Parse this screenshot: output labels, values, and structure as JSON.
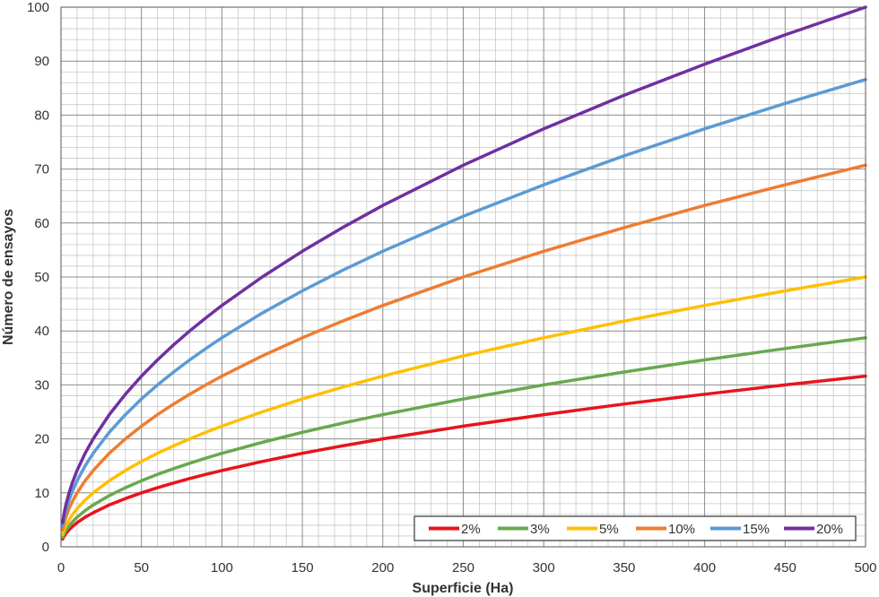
{
  "chart_data": {
    "type": "line",
    "title": "",
    "xlabel": "Superficie (Ha)",
    "ylabel": "Número de ensayos",
    "xlim": [
      0,
      500
    ],
    "ylim": [
      0,
      100
    ],
    "x_ticks": [
      0,
      50,
      100,
      150,
      200,
      250,
      300,
      350,
      400,
      450,
      500
    ],
    "y_ticks": [
      0,
      10,
      20,
      30,
      40,
      50,
      60,
      70,
      80,
      90,
      100
    ],
    "x_tick_labels": [
      "0",
      "50",
      "100",
      "150",
      "200",
      "250",
      "300",
      "350",
      "400",
      "450",
      "500"
    ],
    "y_tick_labels": [
      "0",
      "10",
      "20",
      "30",
      "40",
      "50",
      "60",
      "70",
      "80",
      "90",
      "100"
    ],
    "grid": true,
    "legend_position": "bottom-right",
    "x": [
      1,
      2,
      3,
      5,
      7,
      10,
      15,
      20,
      30,
      40,
      50,
      60,
      70,
      80,
      90,
      100,
      125,
      150,
      175,
      200,
      250,
      300,
      350,
      400,
      450,
      500
    ],
    "series": [
      {
        "name": "2%",
        "color": "#e8141b",
        "values": [
          1.41,
          2.0,
          2.45,
          3.16,
          3.74,
          4.47,
          5.48,
          6.32,
          7.75,
          8.94,
          10.0,
          10.95,
          11.83,
          12.65,
          13.42,
          14.14,
          15.81,
          17.32,
          18.71,
          20.0,
          22.36,
          24.49,
          26.46,
          28.28,
          30.0,
          31.62
        ]
      },
      {
        "name": "3%",
        "color": "#6aa84f",
        "values": [
          1.73,
          2.45,
          3.0,
          3.87,
          4.58,
          5.48,
          6.71,
          7.75,
          9.49,
          10.95,
          12.25,
          13.42,
          14.49,
          15.49,
          16.43,
          17.32,
          19.36,
          21.21,
          22.91,
          24.49,
          27.39,
          30.0,
          32.4,
          34.64,
          36.74,
          38.73
        ]
      },
      {
        "name": "5%",
        "color": "#ffc000",
        "values": [
          2.24,
          3.16,
          3.87,
          5.0,
          5.92,
          7.07,
          8.66,
          10.0,
          12.25,
          14.14,
          15.81,
          17.32,
          18.71,
          20.0,
          21.21,
          22.36,
          25.0,
          27.39,
          29.58,
          31.62,
          35.36,
          38.73,
          41.83,
          44.72,
          47.43,
          50.0
        ]
      },
      {
        "name": "10%",
        "color": "#ed7d31",
        "values": [
          3.16,
          4.47,
          5.48,
          7.07,
          8.37,
          10.0,
          12.25,
          14.14,
          17.32,
          20.0,
          22.36,
          24.49,
          26.46,
          28.28,
          30.0,
          31.62,
          35.36,
          38.73,
          41.83,
          44.72,
          50.0,
          54.77,
          59.16,
          63.25,
          67.08,
          70.71
        ]
      },
      {
        "name": "15%",
        "color": "#5b9bd5",
        "values": [
          3.87,
          5.48,
          6.71,
          8.66,
          10.25,
          12.25,
          15.0,
          17.32,
          21.21,
          24.49,
          27.39,
          30.0,
          32.4,
          34.64,
          36.74,
          38.73,
          43.3,
          47.43,
          51.23,
          54.77,
          61.24,
          67.08,
          72.46,
          77.46,
          82.16,
          86.6
        ]
      },
      {
        "name": "20%",
        "color": "#7030a0",
        "values": [
          4.47,
          6.32,
          7.75,
          10.0,
          11.83,
          14.14,
          17.32,
          20.0,
          24.49,
          28.28,
          31.62,
          34.64,
          37.42,
          40.0,
          42.43,
          44.72,
          50.0,
          54.77,
          59.16,
          63.25,
          70.71,
          77.46,
          83.67,
          89.44,
          94.87,
          100.0
        ]
      }
    ]
  }
}
